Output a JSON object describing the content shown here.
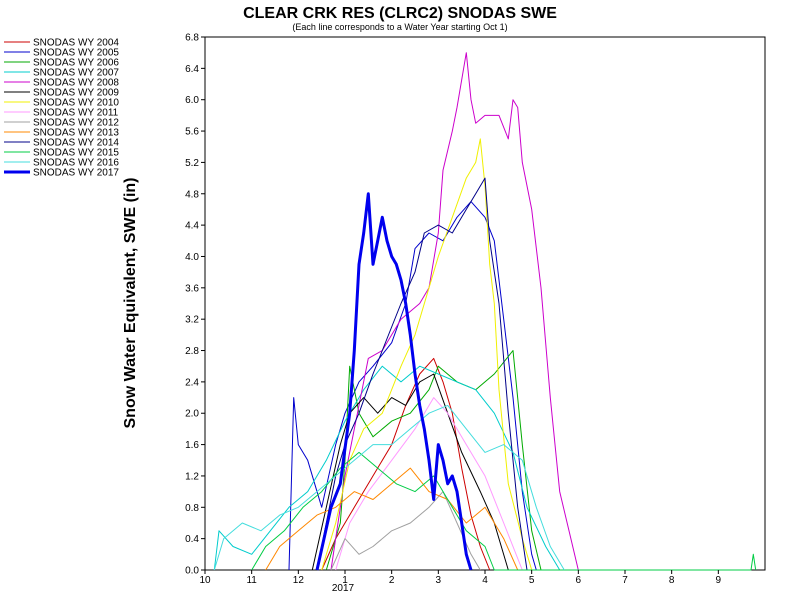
{
  "chart_data": {
    "type": "line",
    "title": "CLEAR CRK RES (CLRC2) SNODAS SWE",
    "subtitle": "(Each line corresponds to a Water Year starting Oct 1)",
    "ylabel": "Snow Water Equivalent, SWE (in)",
    "xlabel": "",
    "year_label": "2017",
    "ylim": [
      0,
      6.8
    ],
    "y_ticks": [
      "0.0",
      "0.4",
      "0.8",
      "1.2",
      "1.6",
      "2.0",
      "2.4",
      "2.8",
      "3.2",
      "3.6",
      "4.0",
      "4.4",
      "4.8",
      "5.2",
      "5.6",
      "6.0",
      "6.4",
      "6.8"
    ],
    "x_ticks": [
      "10",
      "11",
      "12",
      "1",
      "2",
      "3",
      "4",
      "5",
      "6",
      "7",
      "8",
      "9"
    ],
    "x_unit": "month of water year (Oct 1 = 10)",
    "grid": false,
    "legend_position": "left",
    "series": [
      {
        "name": "SNODAS WY 2004",
        "color": "#cc0000",
        "width": 1,
        "points": [
          [
            12.5,
            0
          ],
          [
            12.8,
            0.4
          ],
          [
            1.2,
            0.8
          ],
          [
            1.6,
            1.2
          ],
          [
            2.0,
            1.6
          ],
          [
            2.3,
            2.1
          ],
          [
            2.6,
            2.5
          ],
          [
            2.9,
            2.7
          ],
          [
            3.1,
            2.4
          ],
          [
            3.3,
            2.0
          ],
          [
            3.5,
            1.3
          ],
          [
            3.7,
            0.7
          ],
          [
            3.9,
            0.3
          ],
          [
            4.1,
            0
          ]
        ]
      },
      {
        "name": "SNODAS WY 2005",
        "color": "#0000cc",
        "width": 1,
        "points": [
          [
            11.8,
            0
          ],
          [
            11.9,
            2.2
          ],
          [
            12.0,
            1.6
          ],
          [
            12.2,
            1.4
          ],
          [
            12.5,
            0.8
          ],
          [
            12.8,
            1.6
          ],
          [
            1.0,
            2.0
          ],
          [
            1.3,
            2.4
          ],
          [
            1.6,
            2.6
          ],
          [
            2.0,
            2.9
          ],
          [
            2.3,
            3.4
          ],
          [
            2.5,
            4.1
          ],
          [
            2.8,
            4.3
          ],
          [
            3.1,
            4.2
          ],
          [
            3.4,
            4.5
          ],
          [
            3.7,
            4.7
          ],
          [
            4.0,
            4.5
          ],
          [
            4.2,
            4.2
          ],
          [
            4.4,
            3.2
          ],
          [
            4.6,
            2.2
          ],
          [
            4.8,
            1.0
          ],
          [
            5.0,
            0.2
          ],
          [
            5.1,
            0
          ]
        ]
      },
      {
        "name": "SNODAS WY 2006",
        "color": "#00aa00",
        "width": 1,
        "points": [
          [
            12.6,
            0
          ],
          [
            12.9,
            0.6
          ],
          [
            1.0,
            1.4
          ],
          [
            1.1,
            2.6
          ],
          [
            1.3,
            2.0
          ],
          [
            1.6,
            1.7
          ],
          [
            2.0,
            1.9
          ],
          [
            2.4,
            2.0
          ],
          [
            2.8,
            2.3
          ],
          [
            3.0,
            2.6
          ],
          [
            3.4,
            2.4
          ],
          [
            3.8,
            2.3
          ],
          [
            4.2,
            2.5
          ],
          [
            4.6,
            2.8
          ],
          [
            4.8,
            1.6
          ],
          [
            5.0,
            0.5
          ],
          [
            5.2,
            0
          ]
        ]
      },
      {
        "name": "SNODAS WY 2007",
        "color": "#00cccc",
        "width": 1,
        "points": [
          [
            10.2,
            0
          ],
          [
            10.3,
            0.5
          ],
          [
            10.6,
            0.3
          ],
          [
            11.0,
            0.2
          ],
          [
            11.4,
            0.5
          ],
          [
            11.8,
            0.8
          ],
          [
            12.2,
            1.0
          ],
          [
            12.6,
            1.4
          ],
          [
            1.0,
            1.9
          ],
          [
            1.4,
            2.3
          ],
          [
            1.8,
            2.6
          ],
          [
            2.2,
            2.4
          ],
          [
            2.6,
            2.6
          ],
          [
            3.0,
            2.5
          ],
          [
            3.4,
            2.4
          ],
          [
            3.8,
            2.3
          ],
          [
            4.2,
            2.0
          ],
          [
            4.6,
            1.5
          ],
          [
            4.9,
            0.8
          ],
          [
            5.3,
            0.3
          ],
          [
            5.6,
            0
          ]
        ]
      },
      {
        "name": "SNODAS WY 2008",
        "color": "#cc00cc",
        "width": 1,
        "points": [
          [
            12.7,
            0
          ],
          [
            1.0,
            1.2
          ],
          [
            1.5,
            2.7
          ],
          [
            1.8,
            2.8
          ],
          [
            2.2,
            3.2
          ],
          [
            2.6,
            3.4
          ],
          [
            2.8,
            3.6
          ],
          [
            3.0,
            4.3
          ],
          [
            3.1,
            5.1
          ],
          [
            3.3,
            5.6
          ],
          [
            3.4,
            5.9
          ],
          [
            3.6,
            6.6
          ],
          [
            3.7,
            6.0
          ],
          [
            3.8,
            5.7
          ],
          [
            4.0,
            5.8
          ],
          [
            4.3,
            5.8
          ],
          [
            4.5,
            5.5
          ],
          [
            4.6,
            6.0
          ],
          [
            4.7,
            5.9
          ],
          [
            4.8,
            5.2
          ],
          [
            5.0,
            4.6
          ],
          [
            5.2,
            3.6
          ],
          [
            5.4,
            2.2
          ],
          [
            5.6,
            1.0
          ],
          [
            5.8,
            0.5
          ],
          [
            6.0,
            0
          ]
        ]
      },
      {
        "name": "SNODAS WY 2009",
        "color": "#000000",
        "width": 1,
        "points": [
          [
            12.3,
            0
          ],
          [
            12.6,
            0.8
          ],
          [
            12.9,
            1.6
          ],
          [
            1.1,
            2.0
          ],
          [
            1.4,
            2.2
          ],
          [
            1.7,
            2.0
          ],
          [
            2.0,
            2.2
          ],
          [
            2.3,
            2.1
          ],
          [
            2.6,
            2.4
          ],
          [
            2.9,
            2.5
          ],
          [
            3.2,
            2.0
          ],
          [
            3.5,
            1.5
          ],
          [
            3.9,
            1.0
          ],
          [
            4.2,
            0.6
          ],
          [
            4.5,
            0
          ]
        ]
      },
      {
        "name": "SNODAS WY 2010",
        "color": "#f0f000",
        "width": 1,
        "points": [
          [
            12.5,
            0
          ],
          [
            12.8,
            0.6
          ],
          [
            1.1,
            1.4
          ],
          [
            1.4,
            1.8
          ],
          [
            1.8,
            2.0
          ],
          [
            2.2,
            2.6
          ],
          [
            2.5,
            3.0
          ],
          [
            2.8,
            3.6
          ],
          [
            3.0,
            4.0
          ],
          [
            3.3,
            4.5
          ],
          [
            3.6,
            5.0
          ],
          [
            3.8,
            5.2
          ],
          [
            3.9,
            5.5
          ],
          [
            4.0,
            4.9
          ],
          [
            4.1,
            3.9
          ],
          [
            4.2,
            3.4
          ],
          [
            4.3,
            2.3
          ],
          [
            4.5,
            1.1
          ],
          [
            4.8,
            0.4
          ],
          [
            5.0,
            0
          ]
        ]
      },
      {
        "name": "SNODAS WY 2011",
        "color": "#ff99ff",
        "width": 1,
        "points": [
          [
            12.8,
            0
          ],
          [
            1.1,
            0.6
          ],
          [
            1.5,
            1.0
          ],
          [
            2.0,
            1.4
          ],
          [
            2.5,
            1.8
          ],
          [
            2.9,
            2.2
          ],
          [
            3.2,
            2.0
          ],
          [
            3.6,
            1.6
          ],
          [
            4.0,
            1.2
          ],
          [
            4.4,
            0.6
          ],
          [
            4.8,
            0
          ]
        ]
      },
      {
        "name": "SNODAS WY 2012",
        "color": "#a0a0a0",
        "width": 1,
        "points": [
          [
            12.7,
            0
          ],
          [
            1.0,
            0.4
          ],
          [
            1.3,
            0.2
          ],
          [
            1.6,
            0.3
          ],
          [
            2.0,
            0.5
          ],
          [
            2.4,
            0.6
          ],
          [
            2.8,
            0.8
          ],
          [
            3.1,
            1.0
          ],
          [
            3.4,
            0.6
          ],
          [
            3.7,
            0.2
          ],
          [
            3.9,
            0
          ]
        ]
      },
      {
        "name": "SNODAS WY 2013",
        "color": "#ff8800",
        "width": 1,
        "points": [
          [
            11.3,
            0
          ],
          [
            11.6,
            0.3
          ],
          [
            12.0,
            0.5
          ],
          [
            12.4,
            0.7
          ],
          [
            12.8,
            0.8
          ],
          [
            1.2,
            1.0
          ],
          [
            1.6,
            0.9
          ],
          [
            2.0,
            1.1
          ],
          [
            2.4,
            1.3
          ],
          [
            2.8,
            1.0
          ],
          [
            3.2,
            0.9
          ],
          [
            3.6,
            0.6
          ],
          [
            4.0,
            0.8
          ],
          [
            4.4,
            0.4
          ],
          [
            4.7,
            0
          ]
        ]
      },
      {
        "name": "SNODAS WY 2014",
        "color": "#000088",
        "width": 1,
        "points": [
          [
            12.4,
            0
          ],
          [
            12.6,
            0.6
          ],
          [
            12.8,
            1.2
          ],
          [
            1.0,
            1.6
          ],
          [
            1.3,
            2.0
          ],
          [
            1.6,
            2.5
          ],
          [
            1.8,
            2.8
          ],
          [
            2.2,
            3.4
          ],
          [
            2.5,
            3.8
          ],
          [
            2.7,
            4.3
          ],
          [
            3.0,
            4.4
          ],
          [
            3.3,
            4.3
          ],
          [
            3.6,
            4.6
          ],
          [
            3.8,
            4.8
          ],
          [
            4.0,
            5.0
          ],
          [
            4.1,
            4.2
          ],
          [
            4.3,
            3.4
          ],
          [
            4.5,
            2.0
          ],
          [
            4.7,
            0.8
          ],
          [
            4.9,
            0
          ]
        ]
      },
      {
        "name": "SNODAS WY 2015",
        "color": "#00cc44",
        "width": 1,
        "points": [
          [
            11.0,
            0
          ],
          [
            11.3,
            0.3
          ],
          [
            11.7,
            0.5
          ],
          [
            12.1,
            0.8
          ],
          [
            12.5,
            1.0
          ],
          [
            12.9,
            1.3
          ],
          [
            1.3,
            1.5
          ],
          [
            1.7,
            1.3
          ],
          [
            2.1,
            1.1
          ],
          [
            2.5,
            1.0
          ],
          [
            2.9,
            1.2
          ],
          [
            3.2,
            0.9
          ],
          [
            3.6,
            0.5
          ],
          [
            4.0,
            0.3
          ],
          [
            4.2,
            0
          ],
          [
            9.7,
            0
          ],
          [
            9.75,
            0.2
          ],
          [
            9.8,
            0
          ]
        ]
      },
      {
        "name": "SNODAS WY 2016",
        "color": "#44dddd",
        "width": 1,
        "points": [
          [
            10.2,
            0
          ],
          [
            10.4,
            0.4
          ],
          [
            10.8,
            0.6
          ],
          [
            11.2,
            0.5
          ],
          [
            11.6,
            0.7
          ],
          [
            12.0,
            0.8
          ],
          [
            12.4,
            1.0
          ],
          [
            12.8,
            1.2
          ],
          [
            1.2,
            1.4
          ],
          [
            1.6,
            1.6
          ],
          [
            2.0,
            1.6
          ],
          [
            2.4,
            1.8
          ],
          [
            2.8,
            2.0
          ],
          [
            3.2,
            2.1
          ],
          [
            3.6,
            1.8
          ],
          [
            4.0,
            1.5
          ],
          [
            4.4,
            1.6
          ],
          [
            4.8,
            1.4
          ],
          [
            5.1,
            0.8
          ],
          [
            5.4,
            0.3
          ],
          [
            5.7,
            0
          ]
        ]
      },
      {
        "name": "SNODAS WY 2017",
        "color": "#0000ee",
        "width": 3,
        "points": [
          [
            12.4,
            0
          ],
          [
            12.7,
            0.8
          ],
          [
            12.9,
            1.1
          ],
          [
            1.1,
            2.0
          ],
          [
            1.2,
            2.8
          ],
          [
            1.3,
            3.9
          ],
          [
            1.4,
            4.3
          ],
          [
            1.5,
            4.8
          ],
          [
            1.6,
            3.9
          ],
          [
            1.7,
            4.2
          ],
          [
            1.8,
            4.5
          ],
          [
            1.9,
            4.2
          ],
          [
            2.0,
            4.0
          ],
          [
            2.1,
            3.9
          ],
          [
            2.2,
            3.7
          ],
          [
            2.3,
            3.4
          ],
          [
            2.4,
            3.0
          ],
          [
            2.5,
            2.5
          ],
          [
            2.6,
            2.1
          ],
          [
            2.7,
            1.8
          ],
          [
            2.8,
            1.4
          ],
          [
            2.9,
            0.9
          ],
          [
            3.0,
            1.6
          ],
          [
            3.1,
            1.4
          ],
          [
            3.2,
            1.1
          ],
          [
            3.3,
            1.2
          ],
          [
            3.4,
            1.0
          ],
          [
            3.5,
            0.6
          ],
          [
            3.6,
            0.2
          ],
          [
            3.7,
            0
          ]
        ]
      }
    ]
  }
}
